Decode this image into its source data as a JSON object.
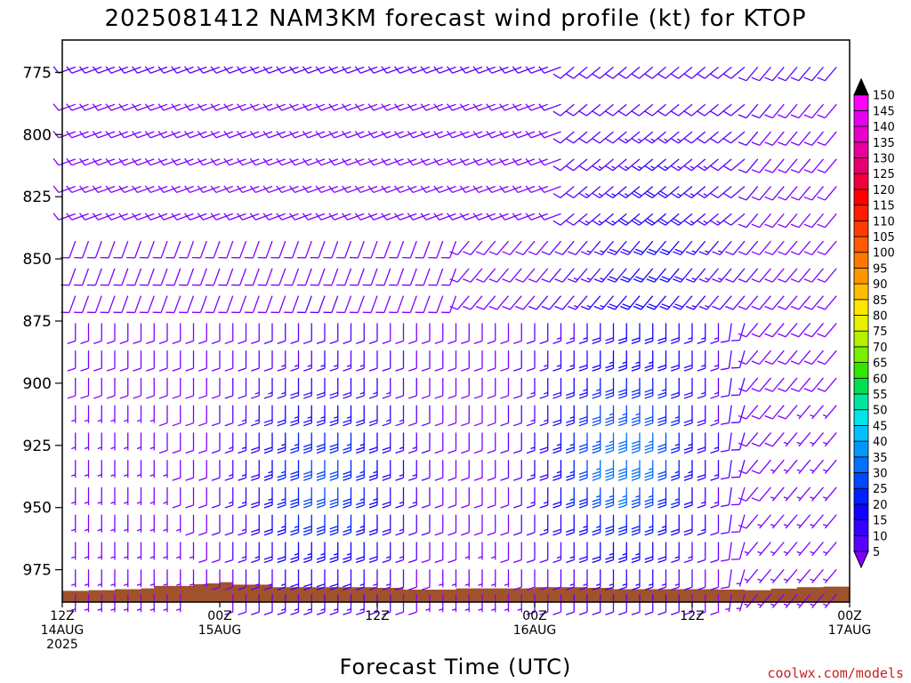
{
  "chart_data": {
    "type": "wind-barb-profile",
    "title": "2025081412 NAM3KM forecast wind profile (kt) for KTOP",
    "xlabel": "Forecast Time (UTC)",
    "ylabel": "",
    "credit": "coolwx.com/models",
    "x_ticks": [
      {
        "hour": 0,
        "l1": "12Z",
        "l2": "14AUG",
        "l3": "2025"
      },
      {
        "hour": 12,
        "l1": "00Z",
        "l2": "15AUG",
        "l3": ""
      },
      {
        "hour": 24,
        "l1": "12Z",
        "l2": "",
        "l3": ""
      },
      {
        "hour": 36,
        "l1": "00Z",
        "l2": "16AUG",
        "l3": ""
      },
      {
        "hour": 48,
        "l1": "12Z",
        "l2": "",
        "l3": ""
      },
      {
        "hour": 60,
        "l1": "00Z",
        "l2": "17AUG",
        "l3": ""
      }
    ],
    "y_ticks": [
      775,
      800,
      825,
      850,
      875,
      900,
      925,
      950,
      975
    ],
    "xlim_hours": [
      0,
      60
    ],
    "ylim_mb": [
      762,
      988
    ],
    "colorbar": {
      "levels": [
        5,
        10,
        15,
        20,
        25,
        30,
        35,
        40,
        45,
        50,
        55,
        60,
        65,
        70,
        75,
        80,
        85,
        90,
        95,
        100,
        105,
        110,
        115,
        120,
        125,
        130,
        135,
        140,
        145,
        150
      ],
      "colors": [
        "#7f00ff",
        "#5a00ff",
        "#3500ff",
        "#1000ff",
        "#0020ff",
        "#0048ff",
        "#0070ff",
        "#0098ff",
        "#00c0ff",
        "#00e6e6",
        "#00e6a0",
        "#00e050",
        "#32e600",
        "#78f000",
        "#b4f000",
        "#e6f000",
        "#ffe600",
        "#ffbe00",
        "#ff9600",
        "#ff7800",
        "#ff5a00",
        "#ff3c00",
        "#ff1e00",
        "#ff0000",
        "#f0003c",
        "#e6006e",
        "#e6009b",
        "#e600c8",
        "#e600f0",
        "#ff00ff"
      ]
    },
    "terrain": {
      "color": "#a0522d",
      "surface_pressure_by_hour": [
        {
          "h": 0,
          "p": 983.5
        },
        {
          "h": 2,
          "p": 983.2
        },
        {
          "h": 4,
          "p": 982.8
        },
        {
          "h": 6,
          "p": 982.5
        },
        {
          "h": 7,
          "p": 981.5
        },
        {
          "h": 10,
          "p": 980.8
        },
        {
          "h": 11,
          "p": 980.5
        },
        {
          "h": 12,
          "p": 980.0
        },
        {
          "h": 13,
          "p": 981.0
        },
        {
          "h": 16,
          "p": 982.0
        },
        {
          "h": 24,
          "p": 982.3
        },
        {
          "h": 26,
          "p": 983.0
        },
        {
          "h": 30,
          "p": 982.5
        },
        {
          "h": 36,
          "p": 982.0
        },
        {
          "h": 40,
          "p": 982.3
        },
        {
          "h": 42,
          "p": 982.8
        },
        {
          "h": 48,
          "p": 982.8
        },
        {
          "h": 50,
          "p": 983.0
        },
        {
          "h": 52,
          "p": 983.2
        },
        {
          "h": 54,
          "p": 982.6
        },
        {
          "h": 56,
          "p": 982.0
        },
        {
          "h": 58,
          "p": 981.8
        },
        {
          "h": 60,
          "p": 981.5
        }
      ]
    },
    "wind_levels_mb": [
      770,
      785,
      796,
      807,
      818,
      829,
      840,
      851,
      862,
      873,
      884,
      895,
      906,
      917,
      928,
      939,
      950,
      961,
      972,
      982
    ],
    "wind_hours_step": 1
  }
}
